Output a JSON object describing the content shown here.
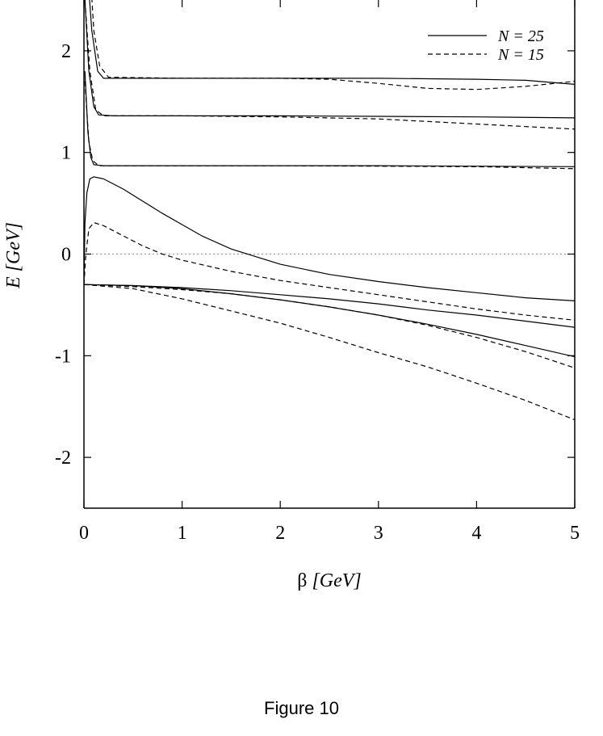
{
  "chart_data": {
    "type": "line",
    "xlabel_symbol": "β",
    "xlabel_unit": "[GeV]",
    "ylabel_symbol": "E",
    "ylabel_unit": "[GeV]",
    "xlim": [
      0,
      5
    ],
    "ylim": [
      -2.5,
      2.5
    ],
    "x_ticks": [
      "0",
      "1",
      "2",
      "3",
      "4",
      "5"
    ],
    "y_ticks": [
      "-2",
      "-1",
      "0",
      "1",
      "2"
    ],
    "x_tick_values": [
      0,
      1,
      2,
      3,
      4,
      5
    ],
    "y_tick_values": [
      -2,
      -1,
      0,
      1,
      2
    ],
    "zero_line": 0,
    "legend_position": "top-right",
    "legend": [
      {
        "label": "N = 25",
        "style": "solid"
      },
      {
        "label": "N = 15",
        "style": "dashed"
      }
    ],
    "series": [
      {
        "group": "N = 25",
        "style": "solid",
        "points": [
          [
            0.02,
            3.0
          ],
          [
            0.08,
            2.2
          ],
          [
            0.14,
            1.8
          ],
          [
            0.2,
            1.73
          ],
          [
            1,
            1.73
          ],
          [
            2,
            1.73
          ],
          [
            3,
            1.73
          ],
          [
            4,
            1.72
          ],
          [
            4.5,
            1.71
          ],
          [
            5,
            1.67
          ]
        ]
      },
      {
        "group": "N = 25",
        "style": "solid",
        "points": [
          [
            0.01,
            2.5
          ],
          [
            0.05,
            1.8
          ],
          [
            0.1,
            1.45
          ],
          [
            0.15,
            1.37
          ],
          [
            0.3,
            1.36
          ],
          [
            1,
            1.36
          ],
          [
            2,
            1.36
          ],
          [
            3,
            1.355
          ],
          [
            4,
            1.35
          ],
          [
            5,
            1.34
          ]
        ]
      },
      {
        "group": "N = 25",
        "style": "solid",
        "points": [
          [
            0.01,
            1.8
          ],
          [
            0.04,
            1.2
          ],
          [
            0.07,
            0.95
          ],
          [
            0.1,
            0.88
          ],
          [
            0.2,
            0.87
          ],
          [
            1,
            0.87
          ],
          [
            2,
            0.87
          ],
          [
            3,
            0.87
          ],
          [
            4,
            0.865
          ],
          [
            5,
            0.86
          ]
        ]
      },
      {
        "group": "N = 25",
        "style": "solid",
        "points": [
          [
            0,
            -0.3
          ],
          [
            0.01,
            0.3
          ],
          [
            0.03,
            0.6
          ],
          [
            0.06,
            0.74
          ],
          [
            0.1,
            0.76
          ],
          [
            0.2,
            0.74
          ],
          [
            0.4,
            0.64
          ],
          [
            0.6,
            0.52
          ],
          [
            0.8,
            0.4
          ],
          [
            1.0,
            0.29
          ],
          [
            1.2,
            0.18
          ],
          [
            1.5,
            0.05
          ],
          [
            2.0,
            -0.1
          ],
          [
            2.5,
            -0.2
          ],
          [
            3.0,
            -0.27
          ],
          [
            3.5,
            -0.33
          ],
          [
            4.0,
            -0.38
          ],
          [
            4.5,
            -0.43
          ],
          [
            5.0,
            -0.46
          ]
        ]
      },
      {
        "group": "N = 25",
        "style": "solid",
        "points": [
          [
            0,
            -0.3
          ],
          [
            0.5,
            -0.31
          ],
          [
            1.0,
            -0.33
          ],
          [
            1.5,
            -0.36
          ],
          [
            2.0,
            -0.4
          ],
          [
            2.5,
            -0.44
          ],
          [
            3.0,
            -0.49
          ],
          [
            3.5,
            -0.55
          ],
          [
            4.0,
            -0.6
          ],
          [
            4.5,
            -0.66
          ],
          [
            5.0,
            -0.72
          ]
        ]
      },
      {
        "group": "N = 25",
        "style": "solid",
        "points": [
          [
            0,
            -0.3
          ],
          [
            0.5,
            -0.31
          ],
          [
            1.0,
            -0.34
          ],
          [
            1.5,
            -0.39
          ],
          [
            2.0,
            -0.45
          ],
          [
            2.5,
            -0.52
          ],
          [
            3.0,
            -0.6
          ],
          [
            3.5,
            -0.69
          ],
          [
            4.0,
            -0.79
          ],
          [
            4.5,
            -0.9
          ],
          [
            5.0,
            -1.01
          ]
        ]
      },
      {
        "group": "N = 15",
        "style": "dashed",
        "points": [
          [
            0.05,
            3.0
          ],
          [
            0.1,
            2.2
          ],
          [
            0.16,
            1.85
          ],
          [
            0.25,
            1.74
          ],
          [
            1,
            1.73
          ],
          [
            2,
            1.73
          ],
          [
            2.5,
            1.72
          ],
          [
            3,
            1.68
          ],
          [
            3.5,
            1.63
          ],
          [
            4,
            1.62
          ],
          [
            4.5,
            1.65
          ],
          [
            5,
            1.7
          ]
        ]
      },
      {
        "group": "N = 15",
        "style": "dashed",
        "points": [
          [
            0.01,
            2.5
          ],
          [
            0.06,
            1.8
          ],
          [
            0.12,
            1.42
          ],
          [
            0.2,
            1.36
          ],
          [
            1,
            1.36
          ],
          [
            2,
            1.35
          ],
          [
            3,
            1.33
          ],
          [
            4,
            1.28
          ],
          [
            5,
            1.23
          ]
        ]
      },
      {
        "group": "N = 15",
        "style": "dashed",
        "points": [
          [
            0.01,
            1.7
          ],
          [
            0.05,
            1.1
          ],
          [
            0.09,
            0.92
          ],
          [
            0.15,
            0.87
          ],
          [
            1,
            0.87
          ],
          [
            2,
            0.87
          ],
          [
            3,
            0.865
          ],
          [
            4,
            0.86
          ],
          [
            5,
            0.84
          ]
        ]
      },
      {
        "group": "N = 15",
        "style": "dashed",
        "points": [
          [
            0,
            -0.3
          ],
          [
            0.02,
            0.0
          ],
          [
            0.05,
            0.25
          ],
          [
            0.1,
            0.31
          ],
          [
            0.2,
            0.28
          ],
          [
            0.4,
            0.18
          ],
          [
            0.6,
            0.08
          ],
          [
            0.8,
            0.0
          ],
          [
            1.0,
            -0.06
          ],
          [
            1.5,
            -0.17
          ],
          [
            2.0,
            -0.26
          ],
          [
            2.5,
            -0.33
          ],
          [
            3.0,
            -0.4
          ],
          [
            3.5,
            -0.47
          ],
          [
            4.0,
            -0.54
          ],
          [
            4.5,
            -0.6
          ],
          [
            5.0,
            -0.65
          ]
        ]
      },
      {
        "group": "N = 15",
        "style": "dashed",
        "points": [
          [
            0,
            -0.3
          ],
          [
            0.5,
            -0.32
          ],
          [
            1.0,
            -0.35
          ],
          [
            1.5,
            -0.39
          ],
          [
            2.0,
            -0.45
          ],
          [
            2.5,
            -0.52
          ],
          [
            3.0,
            -0.6
          ],
          [
            3.5,
            -0.7
          ],
          [
            4.0,
            -0.82
          ],
          [
            4.5,
            -0.96
          ],
          [
            5.0,
            -1.12
          ]
        ]
      },
      {
        "group": "N = 15",
        "style": "dashed",
        "points": [
          [
            0,
            -0.3
          ],
          [
            0.5,
            -0.34
          ],
          [
            1.0,
            -0.44
          ],
          [
            1.5,
            -0.56
          ],
          [
            2.0,
            -0.68
          ],
          [
            2.5,
            -0.82
          ],
          [
            3.0,
            -0.97
          ],
          [
            3.5,
            -1.11
          ],
          [
            4.0,
            -1.27
          ],
          [
            4.5,
            -1.44
          ],
          [
            5.0,
            -1.63
          ]
        ]
      }
    ]
  },
  "caption": "Figure 10"
}
